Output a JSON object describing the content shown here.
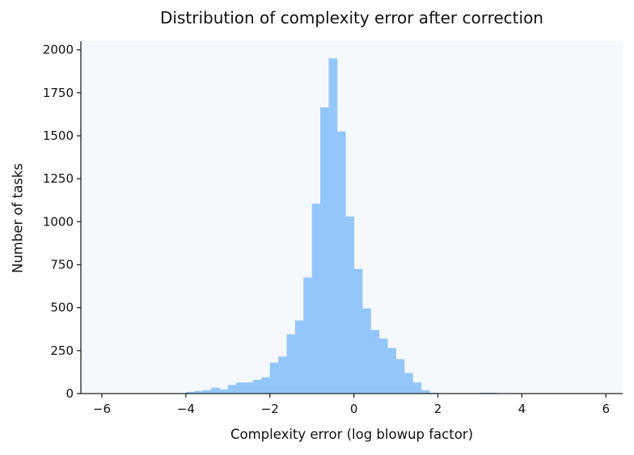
{
  "colors": {
    "bar": "#93c6fb",
    "plot_background": "#f5f9fd",
    "axis": "#222222"
  },
  "chart_data": {
    "type": "bar",
    "title": "Distribution of complexity error after correction",
    "xlabel": "Complexity error (log blowup factor)",
    "ylabel": "Number of tasks",
    "xlim": [
      -6.5,
      6.4
    ],
    "ylim": [
      0,
      2050
    ],
    "xticks": [
      -6,
      -4,
      -2,
      0,
      2,
      4,
      6
    ],
    "xtick_labels": [
      "−6",
      "−4",
      "−2",
      "0",
      "2",
      "4",
      "6"
    ],
    "yticks": [
      0,
      250,
      500,
      750,
      1000,
      1250,
      1500,
      1750,
      2000
    ],
    "ytick_labels": [
      "0",
      "250",
      "500",
      "750",
      "1000",
      "1250",
      "1500",
      "1750",
      "2000"
    ],
    "grid": false,
    "bin_edges_start": -6.0,
    "bin_width": 0.2,
    "values": [
      1,
      1,
      1,
      1,
      1,
      1,
      1,
      1,
      1,
      1,
      10,
      15,
      20,
      35,
      25,
      50,
      65,
      65,
      80,
      95,
      180,
      215,
      345,
      425,
      675,
      1105,
      1665,
      1950,
      1525,
      1030,
      725,
      495,
      370,
      320,
      265,
      200,
      120,
      65,
      20,
      5,
      2,
      2,
      2,
      2,
      2,
      5,
      5,
      1,
      1,
      1,
      1,
      1,
      1,
      1,
      1,
      1,
      1,
      1,
      1,
      1
    ]
  }
}
